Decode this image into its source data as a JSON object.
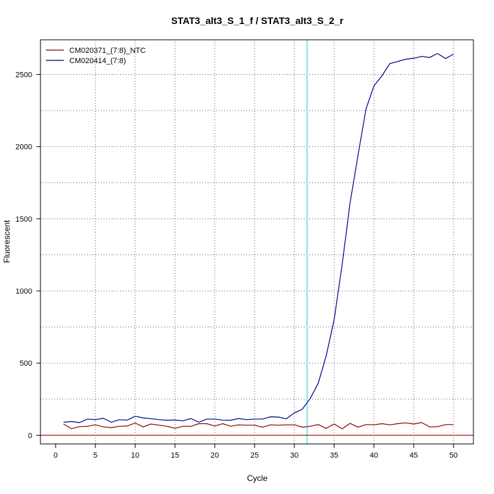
{
  "chart_data": {
    "type": "line",
    "title": "STAT3_alt3_S_1_f / STAT3_alt3_S_2_r",
    "xlabel": "Cycle",
    "ylabel": "Fluorescent",
    "xlim": [
      -1.9,
      52.5
    ],
    "ylim": [
      -60,
      2740
    ],
    "x_ticks": [
      0,
      5,
      10,
      15,
      20,
      25,
      30,
      35,
      40,
      45,
      50
    ],
    "y_ticks": [
      0,
      500,
      1000,
      1500,
      2000,
      2500
    ],
    "x_grid": [
      5,
      10,
      15,
      20,
      25,
      30,
      35,
      40,
      45,
      50
    ],
    "y_grid": [
      250,
      500,
      750,
      1000,
      1250,
      1500,
      1750,
      2000,
      2250,
      2500
    ],
    "grid": true,
    "legend_position": "top-left",
    "threshold": {
      "x": 31.6,
      "color": "#40e0d0"
    },
    "baseline": {
      "y": 0,
      "color": "#b22222"
    },
    "series": [
      {
        "name": "CM020371_(7:8)_NTC",
        "color": "#8b0000",
        "x": [
          1,
          2,
          3,
          4,
          5,
          6,
          7,
          8,
          9,
          10,
          11,
          12,
          13,
          14,
          15,
          16,
          17,
          18,
          19,
          20,
          21,
          22,
          23,
          24,
          25,
          26,
          27,
          28,
          29,
          30,
          31,
          32,
          33,
          34,
          35,
          36,
          37,
          38,
          39,
          40,
          41,
          42,
          43,
          44,
          45,
          46,
          47,
          48,
          49,
          50
        ],
        "values": [
          78,
          45,
          60,
          62,
          72,
          58,
          52,
          62,
          64,
          85,
          58,
          78,
          70,
          62,
          48,
          62,
          62,
          80,
          80,
          64,
          80,
          62,
          72,
          70,
          70,
          56,
          72,
          70,
          72,
          72,
          56,
          62,
          74,
          48,
          78,
          45,
          82,
          56,
          74,
          72,
          80,
          72,
          80,
          86,
          78,
          88,
          58,
          60,
          74,
          74
        ]
      },
      {
        "name": "CM020414_(7:8)",
        "color": "#00008b",
        "x": [
          1,
          2,
          3,
          4,
          5,
          6,
          7,
          8,
          9,
          10,
          11,
          12,
          13,
          14,
          15,
          16,
          17,
          18,
          19,
          20,
          21,
          22,
          23,
          24,
          25,
          26,
          27,
          28,
          29,
          30,
          31,
          32,
          33,
          34,
          35,
          36,
          37,
          38,
          39,
          40,
          41,
          42,
          43,
          44,
          45,
          46,
          47,
          48,
          49,
          50
        ],
        "values": [
          90,
          95,
          88,
          112,
          108,
          118,
          90,
          108,
          105,
          132,
          120,
          115,
          108,
          104,
          106,
          100,
          116,
          90,
          112,
          112,
          105,
          104,
          116,
          108,
          112,
          112,
          128,
          126,
          114,
          155,
          180,
          255,
          360,
          550,
          800,
          1180,
          1610,
          1940,
          2260,
          2420,
          2490,
          2575,
          2590,
          2605,
          2612,
          2625,
          2618,
          2645,
          2610,
          2640
        ]
      }
    ]
  }
}
